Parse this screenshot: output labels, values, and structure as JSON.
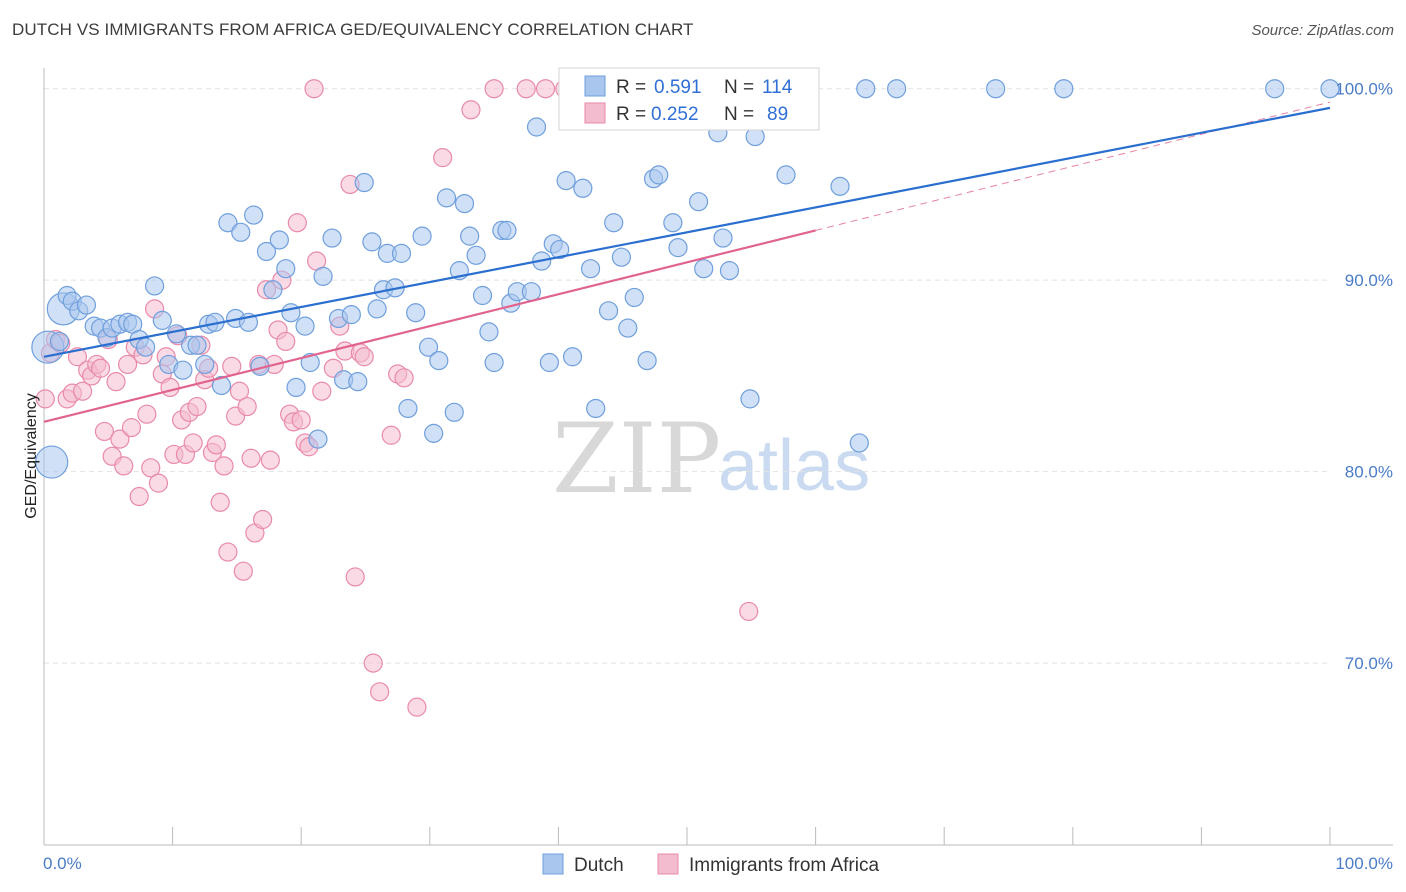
{
  "header": {
    "title": "DUTCH VS IMMIGRANTS FROM AFRICA GED/EQUIVALENCY CORRELATION CHART",
    "source": "Source: ZipAtlas.com"
  },
  "watermark": {
    "zip": "ZIP",
    "atlas": "atlas"
  },
  "colors": {
    "dutch": "#6f9fdc",
    "dutch_fill": "#a9c6ee",
    "africa": "#e98aab",
    "africa_fill": "#f4bccf",
    "dutch_line": "#2a6fcf",
    "africa_line": "#e0648e",
    "axis_label": "#4a7cc7"
  },
  "legend_box": {
    "row1": {
      "r_label": "R = ",
      "r_value": "0.591",
      "n_label": "N = ",
      "n_value": "114"
    },
    "row2": {
      "r_label": "R = ",
      "r_value": "0.252",
      "n_label": "N = ",
      "n_value": "89"
    }
  },
  "bottom_legend": {
    "dutch": "Dutch",
    "africa": "Immigrants from Africa"
  },
  "chart_data": {
    "type": "scatter",
    "title": "DUTCH VS IMMIGRANTS FROM AFRICA GED/EQUIVALENCY CORRELATION CHART",
    "xlabel": "",
    "ylabel": "GED/Equivalency",
    "xlim": [
      0,
      100
    ],
    "ylim": [
      60.5,
      101.5
    ],
    "x_tick_labels": [
      "0.0%",
      "100.0%"
    ],
    "y_ticks": [
      70,
      80,
      90,
      100
    ],
    "y_tick_labels": [
      "70.0%",
      "80.0%",
      "90.0%",
      "100.0%"
    ],
    "grid": true,
    "legend_position": "top-center",
    "series": [
      {
        "name": "Dutch",
        "r": 0.591,
        "n": 114,
        "trend": {
          "x": [
            0,
            100
          ],
          "y": [
            86.0,
            99.0
          ]
        },
        "points": [
          [
            0.3,
            86.5
          ],
          [
            0.6,
            80.5
          ],
          [
            1.2,
            86.8
          ],
          [
            1.5,
            88.5
          ],
          [
            1.8,
            89.2
          ],
          [
            2.2,
            88.9
          ],
          [
            2.7,
            88.4
          ],
          [
            3.3,
            88.7
          ],
          [
            3.9,
            87.6
          ],
          [
            4.4,
            87.5
          ],
          [
            4.9,
            87.0
          ],
          [
            5.3,
            87.5
          ],
          [
            5.9,
            87.7
          ],
          [
            6.5,
            87.8
          ],
          [
            6.9,
            87.7
          ],
          [
            7.4,
            86.9
          ],
          [
            7.9,
            86.5
          ],
          [
            8.6,
            89.7
          ],
          [
            9.2,
            87.9
          ],
          [
            9.7,
            85.6
          ],
          [
            10.3,
            87.2
          ],
          [
            10.8,
            85.3
          ],
          [
            11.4,
            86.6
          ],
          [
            11.9,
            86.6
          ],
          [
            12.5,
            85.6
          ],
          [
            12.8,
            87.7
          ],
          [
            13.3,
            87.8
          ],
          [
            13.8,
            84.5
          ],
          [
            14.3,
            93.0
          ],
          [
            14.9,
            88.0
          ],
          [
            15.3,
            92.5
          ],
          [
            15.9,
            87.8
          ],
          [
            16.3,
            93.4
          ],
          [
            16.8,
            85.5
          ],
          [
            17.3,
            91.5
          ],
          [
            17.8,
            89.5
          ],
          [
            18.3,
            92.1
          ],
          [
            18.8,
            90.6
          ],
          [
            19.2,
            88.3
          ],
          [
            19.6,
            84.4
          ],
          [
            20.3,
            87.6
          ],
          [
            20.7,
            85.7
          ],
          [
            21.3,
            81.7
          ],
          [
            21.7,
            90.2
          ],
          [
            22.4,
            92.2
          ],
          [
            22.9,
            88.0
          ],
          [
            23.3,
            84.8
          ],
          [
            23.9,
            88.2
          ],
          [
            24.4,
            84.7
          ],
          [
            24.9,
            95.1
          ],
          [
            25.5,
            92.0
          ],
          [
            25.9,
            88.5
          ],
          [
            26.4,
            89.5
          ],
          [
            26.7,
            91.4
          ],
          [
            27.3,
            89.6
          ],
          [
            27.8,
            91.4
          ],
          [
            28.3,
            83.3
          ],
          [
            28.9,
            88.3
          ],
          [
            29.4,
            92.3
          ],
          [
            29.9,
            86.5
          ],
          [
            30.3,
            82.0
          ],
          [
            30.7,
            85.8
          ],
          [
            31.3,
            94.3
          ],
          [
            31.9,
            83.1
          ],
          [
            32.3,
            90.5
          ],
          [
            32.7,
            94.0
          ],
          [
            33.1,
            92.3
          ],
          [
            33.6,
            91.3
          ],
          [
            34.1,
            89.2
          ],
          [
            34.6,
            87.3
          ],
          [
            35.0,
            85.7
          ],
          [
            35.6,
            92.6
          ],
          [
            36.0,
            92.6
          ],
          [
            36.3,
            88.8
          ],
          [
            36.8,
            89.4
          ],
          [
            37.9,
            89.4
          ],
          [
            38.3,
            98.0
          ],
          [
            38.7,
            91.0
          ],
          [
            39.3,
            85.7
          ],
          [
            39.6,
            91.9
          ],
          [
            40.1,
            91.6
          ],
          [
            40.6,
            95.2
          ],
          [
            41.1,
            86.0
          ],
          [
            41.9,
            94.8
          ],
          [
            42.5,
            90.6
          ],
          [
            42.9,
            83.3
          ],
          [
            43.9,
            88.4
          ],
          [
            44.3,
            93.0
          ],
          [
            44.9,
            91.2
          ],
          [
            45.4,
            87.5
          ],
          [
            45.9,
            89.1
          ],
          [
            46.9,
            85.8
          ],
          [
            47.4,
            95.3
          ],
          [
            47.8,
            95.5
          ],
          [
            48.9,
            93.0
          ],
          [
            49.3,
            91.7
          ],
          [
            50.9,
            94.1
          ],
          [
            51.3,
            90.6
          ],
          [
            51.9,
            98.9
          ],
          [
            52.4,
            97.7
          ],
          [
            52.8,
            92.2
          ],
          [
            53.3,
            90.5
          ],
          [
            54.9,
            83.8
          ],
          [
            55.3,
            97.5
          ],
          [
            57.7,
            95.5
          ],
          [
            58.3,
            100.0
          ],
          [
            61.9,
            94.9
          ],
          [
            63.4,
            81.5
          ],
          [
            63.9,
            100.0
          ],
          [
            66.3,
            100.0
          ],
          [
            74.0,
            100.0
          ],
          [
            79.3,
            100.0
          ],
          [
            95.7,
            100.0
          ],
          [
            100.0,
            100.0
          ]
        ],
        "sizes": {
          "0.3": "large",
          "0.6": "large",
          "1.5": "large"
        }
      },
      {
        "name": "Immigrants from Africa",
        "r": 0.252,
        "n": 89,
        "trend": {
          "x": [
            0,
            60
          ],
          "y": [
            82.6,
            92.6
          ]
        },
        "trend_dashed": {
          "x": [
            60,
            100
          ],
          "y": [
            92.6,
            99.3
          ]
        },
        "points": [
          [
            0.1,
            83.8
          ],
          [
            0.5,
            86.2
          ],
          [
            0.9,
            86.9
          ],
          [
            1.3,
            86.7
          ],
          [
            1.8,
            83.8
          ],
          [
            2.2,
            84.1
          ],
          [
            2.6,
            86.0
          ],
          [
            3.0,
            84.2
          ],
          [
            3.4,
            85.3
          ],
          [
            3.7,
            85.0
          ],
          [
            4.1,
            85.6
          ],
          [
            4.4,
            85.4
          ],
          [
            4.7,
            82.1
          ],
          [
            5.0,
            86.9
          ],
          [
            5.3,
            80.8
          ],
          [
            5.6,
            84.7
          ],
          [
            5.9,
            81.7
          ],
          [
            6.2,
            80.3
          ],
          [
            6.5,
            85.6
          ],
          [
            6.8,
            82.3
          ],
          [
            7.1,
            86.5
          ],
          [
            7.4,
            78.7
          ],
          [
            7.7,
            86.1
          ],
          [
            8.0,
            83.0
          ],
          [
            8.3,
            80.2
          ],
          [
            8.6,
            88.5
          ],
          [
            8.9,
            79.4
          ],
          [
            9.2,
            85.1
          ],
          [
            9.5,
            86.0
          ],
          [
            9.8,
            84.4
          ],
          [
            10.1,
            80.9
          ],
          [
            10.4,
            87.1
          ],
          [
            10.7,
            82.7
          ],
          [
            11.0,
            80.9
          ],
          [
            11.3,
            83.1
          ],
          [
            11.6,
            81.5
          ],
          [
            11.9,
            83.4
          ],
          [
            12.2,
            86.6
          ],
          [
            12.5,
            84.8
          ],
          [
            12.8,
            85.4
          ],
          [
            13.1,
            81.0
          ],
          [
            13.4,
            81.4
          ],
          [
            13.7,
            78.4
          ],
          [
            14.0,
            80.3
          ],
          [
            14.3,
            75.8
          ],
          [
            14.6,
            85.5
          ],
          [
            14.9,
            82.9
          ],
          [
            15.2,
            84.2
          ],
          [
            15.5,
            74.8
          ],
          [
            15.8,
            83.4
          ],
          [
            16.1,
            80.7
          ],
          [
            16.4,
            76.8
          ],
          [
            16.7,
            85.6
          ],
          [
            17.0,
            77.5
          ],
          [
            17.3,
            89.5
          ],
          [
            17.6,
            80.6
          ],
          [
            17.9,
            85.6
          ],
          [
            18.2,
            87.4
          ],
          [
            18.5,
            90.0
          ],
          [
            18.8,
            86.8
          ],
          [
            19.1,
            83.0
          ],
          [
            19.4,
            82.6
          ],
          [
            19.7,
            93.0
          ],
          [
            20.0,
            82.7
          ],
          [
            20.3,
            81.5
          ],
          [
            20.6,
            81.3
          ],
          [
            21.2,
            91.0
          ],
          [
            21.6,
            84.2
          ],
          [
            22.5,
            85.4
          ],
          [
            23.0,
            87.6
          ],
          [
            23.4,
            86.3
          ],
          [
            23.8,
            95.0
          ],
          [
            24.2,
            74.5
          ],
          [
            24.6,
            86.2
          ],
          [
            24.9,
            86.0
          ],
          [
            25.6,
            70.0
          ],
          [
            26.1,
            68.5
          ],
          [
            27.0,
            81.9
          ],
          [
            27.5,
            85.1
          ],
          [
            28.0,
            84.9
          ],
          [
            29.0,
            67.7
          ],
          [
            31.0,
            96.4
          ],
          [
            33.2,
            98.9
          ],
          [
            35.0,
            100.0
          ],
          [
            37.5,
            100.0
          ],
          [
            39.0,
            100.0
          ],
          [
            40.5,
            100.0
          ],
          [
            54.8,
            72.7
          ],
          [
            21.0,
            100.0
          ]
        ]
      }
    ]
  }
}
